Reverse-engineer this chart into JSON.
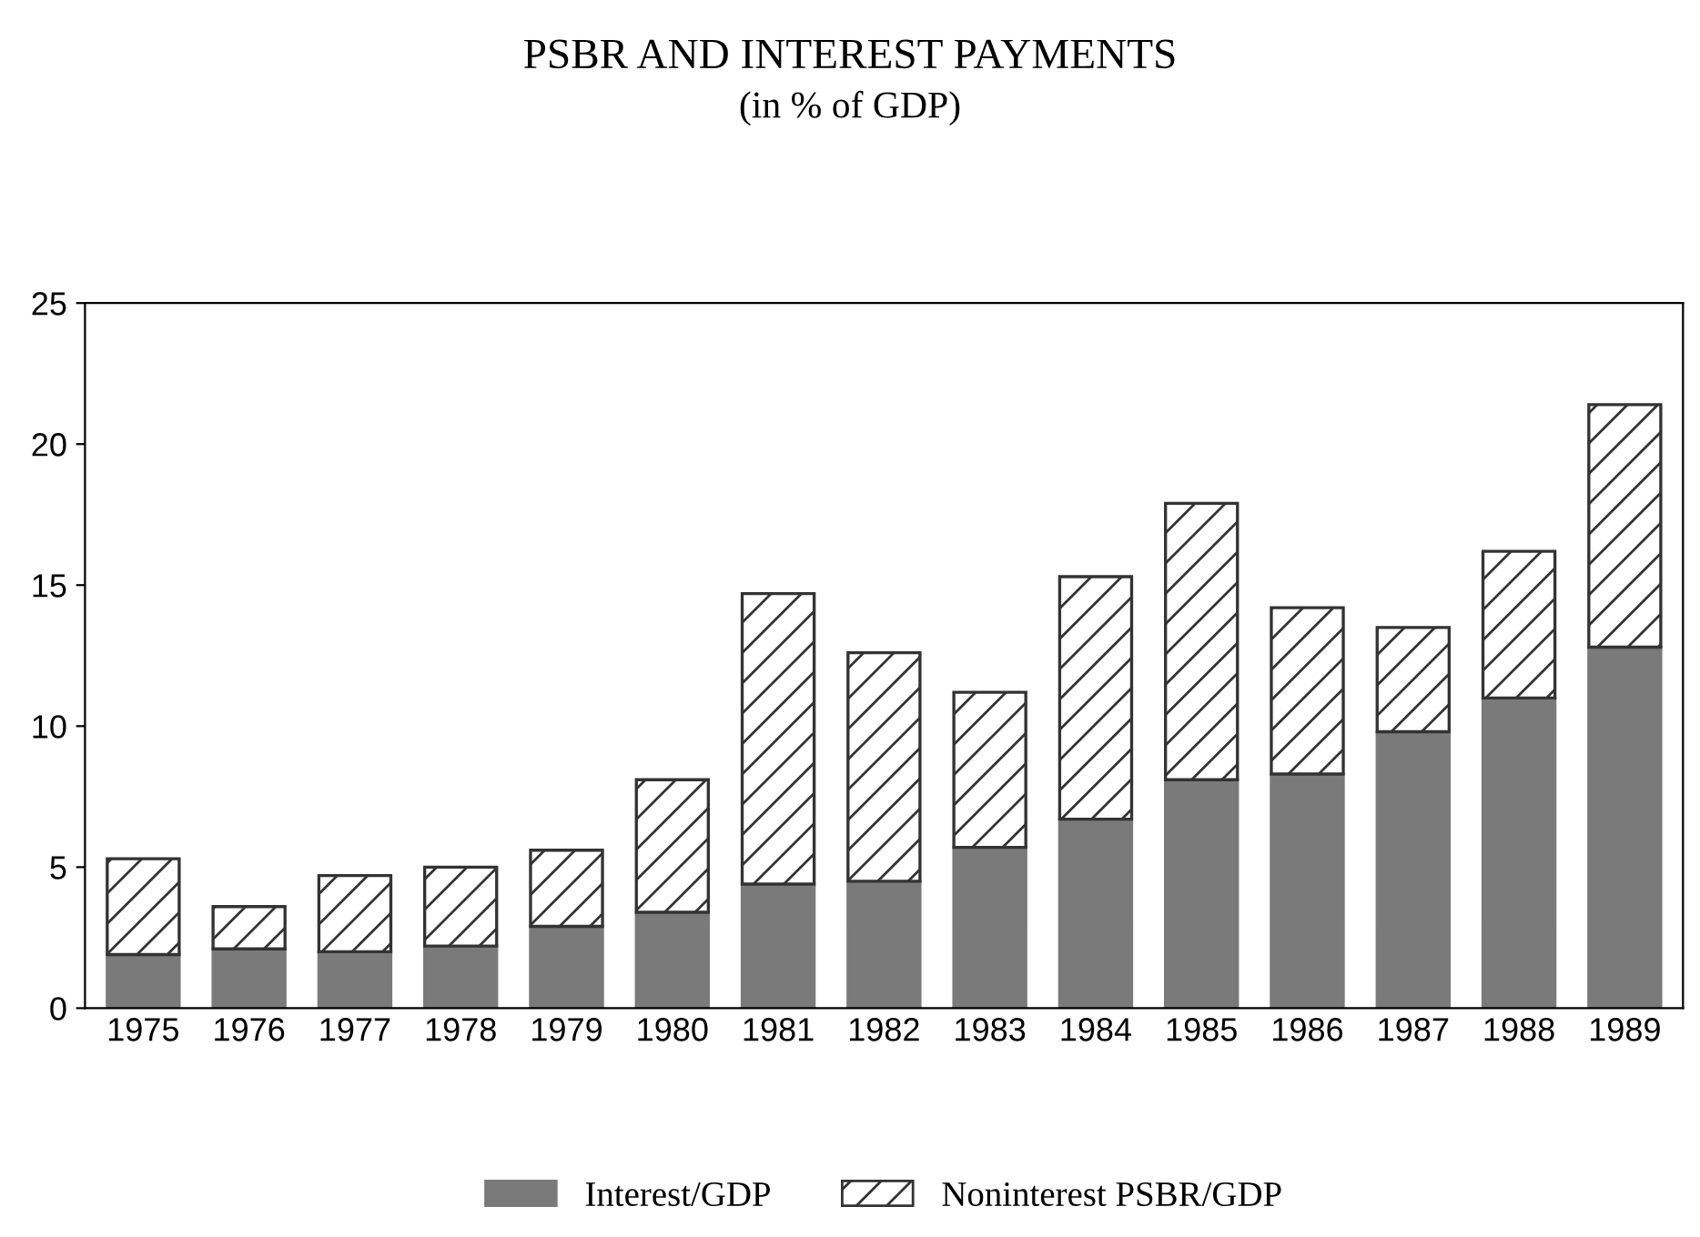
{
  "chart_data": {
    "type": "bar",
    "title": "PSBR AND INTEREST PAYMENTS",
    "subtitle": "(in % of GDP)",
    "categories": [
      "1975",
      "1976",
      "1977",
      "1978",
      "1979",
      "1980",
      "1981",
      "1982",
      "1983",
      "1984",
      "1985",
      "1986",
      "1987",
      "1988",
      "1989"
    ],
    "stacked": true,
    "series": [
      {
        "name": "Interest/GDP",
        "color": "#7a7a7a",
        "values": [
          1.9,
          2.1,
          2.0,
          2.2,
          2.9,
          3.4,
          4.4,
          4.5,
          5.7,
          6.7,
          8.1,
          8.3,
          9.8,
          11.0,
          12.8
        ]
      },
      {
        "name": "Noninterest PSBR/GDP",
        "color": "#333333",
        "values": [
          3.4,
          1.5,
          2.7,
          2.8,
          2.7,
          4.7,
          10.3,
          8.1,
          5.5,
          8.6,
          9.8,
          5.9,
          3.7,
          5.2,
          8.6
        ]
      }
    ],
    "ylim": [
      0,
      25
    ],
    "yticks": [
      0,
      5,
      10,
      15,
      20,
      25
    ],
    "grid": false,
    "legend": "bottom"
  }
}
